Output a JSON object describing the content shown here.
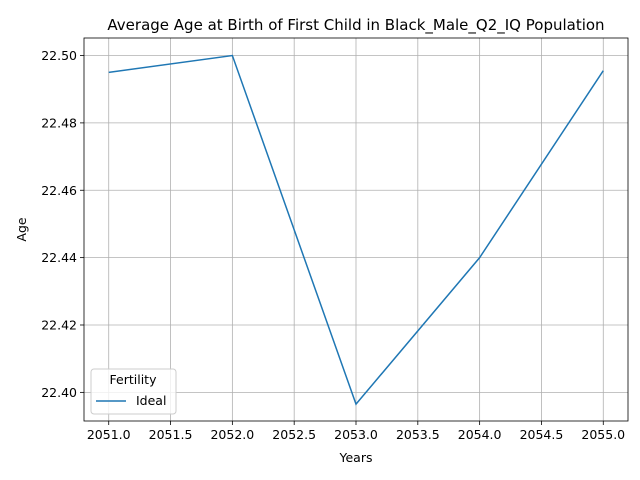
{
  "chart_data": {
    "type": "line",
    "title": "Average Age at Birth of First Child in Black_Male_Q2_IQ Population",
    "xlabel": "Years",
    "ylabel": "Age",
    "x": [
      2051,
      2052,
      2053,
      2054,
      2055
    ],
    "series": [
      {
        "name": "Ideal",
        "values": [
          22.495,
          22.5,
          22.3965,
          22.44,
          22.4955
        ],
        "color": "#1f77b4"
      }
    ],
    "xlim": [
      2050.8,
      2055.2
    ],
    "ylim": [
      22.3915,
      22.5052
    ],
    "xticks": [
      "2051.0",
      "2051.5",
      "2052.0",
      "2052.5",
      "2053.0",
      "2053.5",
      "2054.0",
      "2054.5",
      "2055.0"
    ],
    "yticks": [
      "22.40",
      "22.42",
      "22.44",
      "22.46",
      "22.48",
      "22.50"
    ],
    "grid": true,
    "legend": {
      "title": "Fertility",
      "placement": "lower-left"
    }
  }
}
